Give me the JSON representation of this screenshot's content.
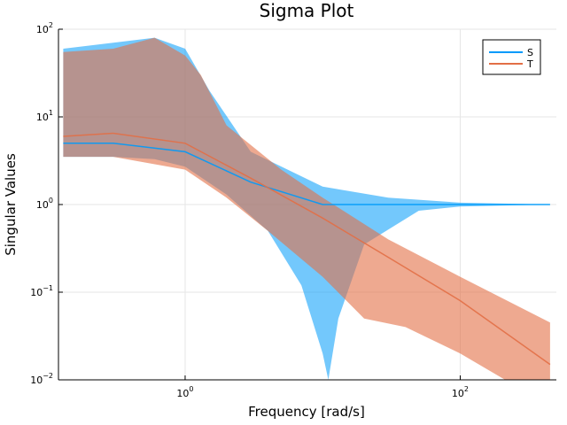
{
  "chart_data": {
    "type": "line",
    "title": "Sigma Plot",
    "xlabel": "Frequency [rad/s]",
    "ylabel": "Singular Values",
    "xscale": "log",
    "yscale": "log",
    "xlim": [
      0.12,
      500
    ],
    "ylim": [
      0.01,
      100
    ],
    "x_ticks": [
      {
        "value": 1,
        "base": "10",
        "exp": "0"
      },
      {
        "value": 100,
        "base": "10",
        "exp": "2"
      }
    ],
    "y_ticks": [
      {
        "value": 0.01,
        "base": "10",
        "exp": "−2"
      },
      {
        "value": 0.1,
        "base": "10",
        "exp": "−1"
      },
      {
        "value": 1,
        "base": "10",
        "exp": "0"
      },
      {
        "value": 10,
        "base": "10",
        "exp": "1"
      },
      {
        "value": 100,
        "base": "10",
        "exp": "2"
      }
    ],
    "grid": true,
    "legend_position": "top-right",
    "series": [
      {
        "name": "S",
        "color": "#009AFA",
        "representative": {
          "x": [
            0.13,
            0.3,
            1,
            3,
            10,
            30,
            100,
            450
          ],
          "y": [
            5,
            5,
            4,
            1.8,
            1.0,
            1.0,
            1.0,
            1.0
          ]
        },
        "band_upper": {
          "x": [
            0.13,
            0.3,
            0.6,
            1,
            1.5,
            3,
            10,
            30,
            100,
            450
          ],
          "y": [
            60,
            70,
            80,
            60,
            20,
            4,
            1.6,
            1.2,
            1.05,
            1.0
          ]
        },
        "band_lower": {
          "x": [
            0.13,
            0.3,
            0.6,
            1,
            2,
            4,
            7,
            10,
            11,
            13,
            20,
            50,
            100,
            450
          ],
          "y": [
            3.5,
            3.5,
            3.3,
            2.7,
            1.3,
            0.5,
            0.12,
            0.02,
            0.01,
            0.05,
            0.35,
            0.85,
            0.95,
            1.0
          ]
        }
      },
      {
        "name": "T",
        "color": "#E26F46",
        "representative": {
          "x": [
            0.13,
            0.3,
            1,
            3,
            10,
            30,
            100,
            450
          ],
          "y": [
            6,
            6.5,
            5,
            2,
            0.7,
            0.25,
            0.08,
            0.015
          ]
        },
        "band_upper": {
          "x": [
            0.13,
            0.3,
            0.6,
            1,
            1.3,
            2,
            5,
            10,
            30,
            100,
            450
          ],
          "y": [
            55,
            60,
            80,
            50,
            30,
            8,
            2.5,
            1.2,
            0.4,
            0.15,
            0.045
          ]
        },
        "band_lower": {
          "x": [
            0.13,
            0.3,
            1,
            2,
            4,
            10,
            20,
            40,
            100,
            450
          ],
          "y": [
            3.5,
            3.5,
            2.5,
            1.2,
            0.5,
            0.15,
            0.05,
            0.04,
            0.02,
            0.005
          ]
        }
      }
    ]
  }
}
